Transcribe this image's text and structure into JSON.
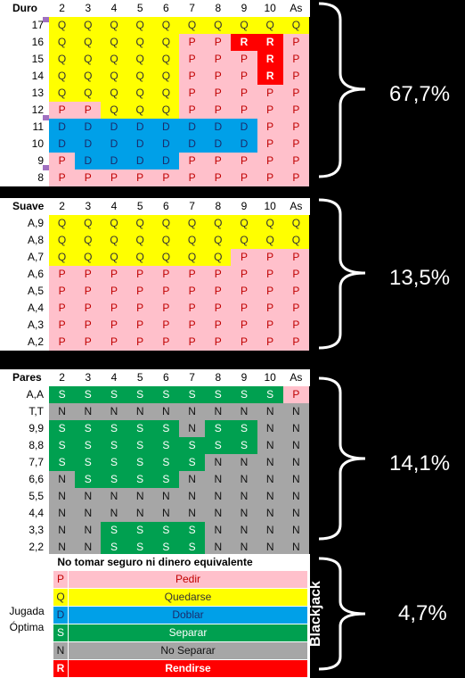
{
  "columns": [
    "2",
    "3",
    "4",
    "5",
    "6",
    "7",
    "8",
    "9",
    "10",
    "As"
  ],
  "sections": [
    {
      "title": "Duro",
      "percent": "67,7%",
      "rows": [
        {
          "label": "17",
          "cells": [
            "Q",
            "Q",
            "Q",
            "Q",
            "Q",
            "Q",
            "Q",
            "Q",
            "Q",
            "Q"
          ]
        },
        {
          "label": "16",
          "cells": [
            "Q",
            "Q",
            "Q",
            "Q",
            "Q",
            "P",
            "P",
            "R",
            "R",
            "P"
          ]
        },
        {
          "label": "15",
          "cells": [
            "Q",
            "Q",
            "Q",
            "Q",
            "Q",
            "P",
            "P",
            "P",
            "R",
            "P"
          ]
        },
        {
          "label": "14",
          "cells": [
            "Q",
            "Q",
            "Q",
            "Q",
            "Q",
            "P",
            "P",
            "P",
            "R",
            "P"
          ]
        },
        {
          "label": "13",
          "cells": [
            "Q",
            "Q",
            "Q",
            "Q",
            "Q",
            "P",
            "P",
            "P",
            "P",
            "P"
          ]
        },
        {
          "label": "12",
          "cells": [
            "P",
            "P",
            "Q",
            "Q",
            "Q",
            "P",
            "P",
            "P",
            "P",
            "P"
          ]
        },
        {
          "label": "11",
          "cells": [
            "D",
            "D",
            "D",
            "D",
            "D",
            "D",
            "D",
            "D",
            "P",
            "P"
          ]
        },
        {
          "label": "10",
          "cells": [
            "D",
            "D",
            "D",
            "D",
            "D",
            "D",
            "D",
            "D",
            "P",
            "P"
          ]
        },
        {
          "label": "9",
          "cells": [
            "P",
            "D",
            "D",
            "D",
            "D",
            "P",
            "P",
            "P",
            "P",
            "P"
          ]
        },
        {
          "label": "8",
          "cells": [
            "P",
            "P",
            "P",
            "P",
            "P",
            "P",
            "P",
            "P",
            "P",
            "P"
          ]
        }
      ]
    },
    {
      "title": "Suave",
      "percent": "13,5%",
      "rows": [
        {
          "label": "A,9",
          "cells": [
            "Q",
            "Q",
            "Q",
            "Q",
            "Q",
            "Q",
            "Q",
            "Q",
            "Q",
            "Q"
          ]
        },
        {
          "label": "A,8",
          "cells": [
            "Q",
            "Q",
            "Q",
            "Q",
            "Q",
            "Q",
            "Q",
            "Q",
            "Q",
            "Q"
          ]
        },
        {
          "label": "A,7",
          "cells": [
            "Q",
            "Q",
            "Q",
            "Q",
            "Q",
            "Q",
            "Q",
            "P",
            "P",
            "P"
          ]
        },
        {
          "label": "A,6",
          "cells": [
            "P",
            "P",
            "P",
            "P",
            "P",
            "P",
            "P",
            "P",
            "P",
            "P"
          ]
        },
        {
          "label": "A,5",
          "cells": [
            "P",
            "P",
            "P",
            "P",
            "P",
            "P",
            "P",
            "P",
            "P",
            "P"
          ]
        },
        {
          "label": "A,4",
          "cells": [
            "P",
            "P",
            "P",
            "P",
            "P",
            "P",
            "P",
            "P",
            "P",
            "P"
          ]
        },
        {
          "label": "A,3",
          "cells": [
            "P",
            "P",
            "P",
            "P",
            "P",
            "P",
            "P",
            "P",
            "P",
            "P"
          ]
        },
        {
          "label": "A,2",
          "cells": [
            "P",
            "P",
            "P",
            "P",
            "P",
            "P",
            "P",
            "P",
            "P",
            "P"
          ]
        }
      ]
    },
    {
      "title": "Pares",
      "percent": "14,1%",
      "rows": [
        {
          "label": "A,A",
          "cells": [
            "S",
            "S",
            "S",
            "S",
            "S",
            "S",
            "S",
            "S",
            "S",
            "P"
          ]
        },
        {
          "label": "T,T",
          "cells": [
            "N",
            "N",
            "N",
            "N",
            "N",
            "N",
            "N",
            "N",
            "N",
            "N"
          ]
        },
        {
          "label": "9,9",
          "cells": [
            "S",
            "S",
            "S",
            "S",
            "S",
            "N",
            "S",
            "S",
            "N",
            "N"
          ]
        },
        {
          "label": "8,8",
          "cells": [
            "S",
            "S",
            "S",
            "S",
            "S",
            "S",
            "S",
            "S",
            "N",
            "N"
          ]
        },
        {
          "label": "7,7",
          "cells": [
            "S",
            "S",
            "S",
            "S",
            "S",
            "S",
            "N",
            "N",
            "N",
            "N"
          ]
        },
        {
          "label": "6,6",
          "cells": [
            "N",
            "S",
            "S",
            "S",
            "S",
            "N",
            "N",
            "N",
            "N",
            "N"
          ]
        },
        {
          "label": "5,5",
          "cells": [
            "N",
            "N",
            "N",
            "N",
            "N",
            "N",
            "N",
            "N",
            "N",
            "N"
          ]
        },
        {
          "label": "4,4",
          "cells": [
            "N",
            "N",
            "N",
            "N",
            "N",
            "N",
            "N",
            "N",
            "N",
            "N"
          ]
        },
        {
          "label": "3,3",
          "cells": [
            "N",
            "N",
            "S",
            "S",
            "S",
            "S",
            "N",
            "N",
            "N",
            "N"
          ]
        },
        {
          "label": "2,2",
          "cells": [
            "N",
            "N",
            "S",
            "S",
            "S",
            "S",
            "N",
            "N",
            "N",
            "N"
          ]
        }
      ]
    }
  ],
  "legend": {
    "note": "No tomar seguro ni dinero equivalente",
    "group_label_1": "Jugada",
    "group_label_2": "Óptima",
    "percent": "4,7%",
    "side_label": "Blackjack",
    "items": [
      {
        "code": "P",
        "label": "Pedir"
      },
      {
        "code": "Q",
        "label": "Quedarse"
      },
      {
        "code": "D",
        "label": "Doblar"
      },
      {
        "code": "S",
        "label": "Separar"
      },
      {
        "code": "N",
        "label": "No Separar"
      },
      {
        "code": "R",
        "label": "Rendirse"
      }
    ]
  },
  "colors": {
    "P": "#ffc0cb",
    "Q": "#ffff00",
    "D": "#00a0e8",
    "S": "#00a050",
    "N": "#a6a6a6",
    "R": "#ff0000"
  }
}
